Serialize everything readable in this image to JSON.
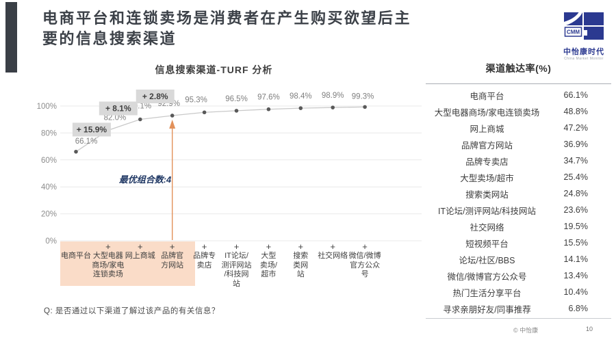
{
  "slide": {
    "title": "电商平台和连锁卖场是消费者在产生购买欲望后主\n要的信息搜索渠道",
    "question_note": "Q: 是否通过以下渠道了解过该产品的有关信息？",
    "footer_copyright": "© 中怡康",
    "page_number": "10"
  },
  "logo": {
    "abbr": "CMM",
    "name": "中怡康时代",
    "subtext": "China Market Monitor",
    "color": "#2b3990"
  },
  "chart_data": {
    "type": "line",
    "title": "信息搜索渠道-TURF 分析",
    "categories": [
      "电商平台",
      "大型电器\n商场/家电\n连锁卖场",
      "网上商城",
      "品牌官\n方网站",
      "品牌专\n卖店",
      "IT论坛/\n测评网站\n/科技网\n站",
      "大型\n卖场/\n超市",
      "搜索\n类网\n站",
      "社交网络",
      "微信/微博\n官方公众\n号"
    ],
    "values": [
      66.1,
      82.0,
      90.1,
      92.9,
      95.3,
      96.5,
      97.6,
      98.4,
      98.9,
      99.3
    ],
    "point_labels": [
      "66.1%",
      "82.0%",
      "90.1%",
      "92.9%",
      "95.3%",
      "96.5%",
      "97.6%",
      "98.4%",
      "98.9%",
      "99.3%"
    ],
    "increments": [
      {
        "after_index": 1,
        "label": "+ 15.9%"
      },
      {
        "after_index": 2,
        "label": "+ 8.1%"
      },
      {
        "after_index": 3,
        "label": "+ 2.8%"
      }
    ],
    "annotation": "最优组合数:4",
    "optimal_combo_size": 4,
    "highlight_columns": 4,
    "ylim": [
      0,
      100
    ],
    "yticks": [
      "100%",
      "80%",
      "60%",
      "40%",
      "20%",
      "0%"
    ],
    "grid": true,
    "legend": "none",
    "colors": {
      "line": "#c9c9c9",
      "marker": "#595959",
      "point_label": "#7f7f7f",
      "increment_box": "#d9d9d9",
      "increment_text": "#404040",
      "arrow": "#e2915a",
      "highlight": "#fadcc8",
      "annotation": "#203864",
      "grid": "#e9e9e9",
      "tick": "#8c8c8c"
    }
  },
  "reach_table": {
    "title": "渠道触达率(%)",
    "rows": [
      {
        "name": "电商平台",
        "value": "66.1%"
      },
      {
        "name": "大型电器商场/家电连锁卖场",
        "value": "48.8%"
      },
      {
        "name": "网上商城",
        "value": "47.2%"
      },
      {
        "name": "品牌官方网站",
        "value": "36.9%"
      },
      {
        "name": "品牌专卖店",
        "value": "34.7%"
      },
      {
        "name": "大型卖场/超市",
        "value": "25.4%"
      },
      {
        "name": "搜索类网站",
        "value": "24.8%"
      },
      {
        "name": "IT论坛/测评网站/科技网站",
        "value": "23.6%"
      },
      {
        "name": "社交网络",
        "value": "19.5%"
      },
      {
        "name": "短视频平台",
        "value": "15.5%"
      },
      {
        "name": "论坛/社区/BBS",
        "value": "14.1%"
      },
      {
        "name": "微信/微博官方公众号",
        "value": "13.4%"
      },
      {
        "name": "热门生活分享平台",
        "value": "10.4%"
      },
      {
        "name": "寻求亲朋好友/同事推荐",
        "value": "6.8%"
      }
    ]
  }
}
